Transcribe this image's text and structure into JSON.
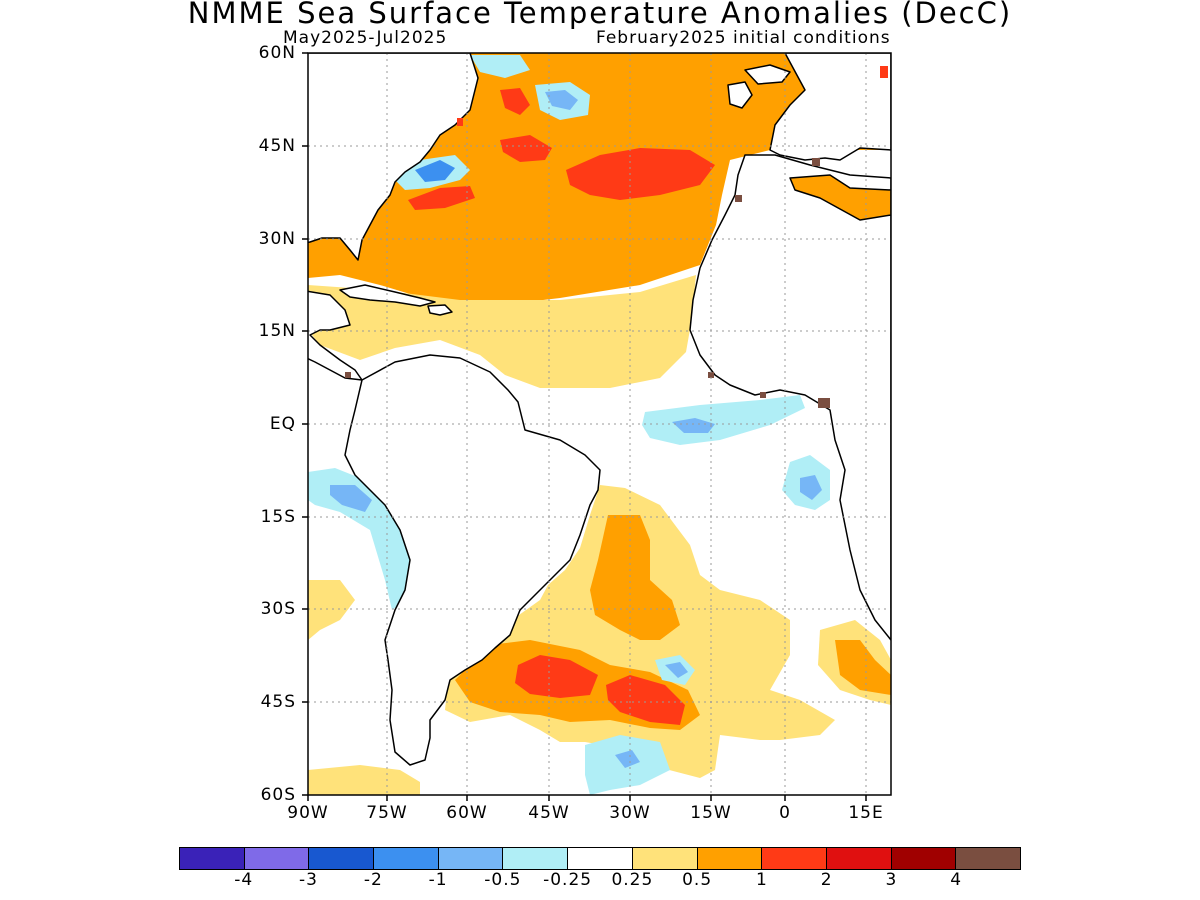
{
  "header": {
    "title": "NMME Sea Surface Temperature Anomalies (DecC)",
    "subtitle_left": "May2025-Jul2025",
    "subtitle_right": "February2025 initial conditions"
  },
  "map": {
    "projection": "lat-lon",
    "lon_range": [
      -90,
      18
    ],
    "lat_range": [
      -60,
      60
    ],
    "gridlines": true,
    "lat_labels": [
      "60N",
      "45N",
      "30N",
      "15N",
      "EQ",
      "15S",
      "30S",
      "45S",
      "60S"
    ],
    "lon_labels": [
      "90W",
      "75W",
      "60W",
      "45W",
      "30W",
      "15W",
      "0",
      "15E"
    ]
  },
  "colorbar": {
    "colors": [
      "#3a22b8",
      "#7f6ae8",
      "#1858d0",
      "#3c90f0",
      "#76b6f6",
      "#b0eef6",
      "#ffffff",
      "#ffe27a",
      "#ffa000",
      "#ff3a16",
      "#e01010",
      "#a00000",
      "#7a4e40"
    ],
    "labels": [
      "-4",
      "-3",
      "-2",
      "-1",
      "-0.5",
      "-0.25",
      "0.25",
      "0.5",
      "1",
      "2",
      "3",
      "4"
    ]
  }
}
